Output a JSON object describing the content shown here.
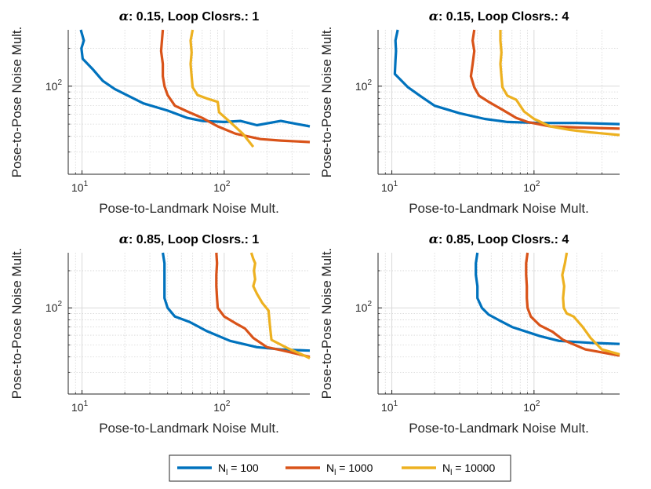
{
  "chart_data": {
    "type": "line",
    "layout": "2x2 grid of log-log line plots",
    "xscale": "log",
    "yscale": "log",
    "xlim": [
      8,
      400
    ],
    "ylim": [
      20,
      280
    ],
    "xticks": [
      10,
      100
    ],
    "xtick_labels": [
      {
        "base": "10",
        "exp": "1"
      },
      {
        "base": "10",
        "exp": "2"
      }
    ],
    "yticks": [
      100
    ],
    "ytick_labels": [
      {
        "base": "10",
        "exp": "2"
      }
    ],
    "grid": true,
    "minor_grid": true,
    "xlabel": "Pose-to-Landmark Noise Mult.",
    "ylabel": "Pose-to-Pose Noise Mult.",
    "title_symbol": "α",
    "series_colors": {
      "N100": "#0072BD",
      "N1000": "#D95319",
      "N10000": "#EDB120"
    },
    "legend": {
      "placement": "bottom-center",
      "entries": [
        {
          "key": "N100",
          "label_main": "N",
          "label_sub": "l",
          "label_value": " = 100",
          "color": "#0072BD"
        },
        {
          "key": "N1000",
          "label_main": "N",
          "label_sub": "l",
          "label_value": " = 1000",
          "color": "#D95319"
        },
        {
          "key": "N10000",
          "label_main": "N",
          "label_sub": "l",
          "label_value": " = 10000",
          "color": "#EDB120"
        }
      ]
    },
    "panels": [
      {
        "title_rest": ": 0.15, Loop Closrs.: 1",
        "series": [
          {
            "key": "N100",
            "x": [
              9.8,
              10.3,
              9.9,
              10.1,
              12,
              14,
              17,
              27,
              40,
              55,
              70,
              100,
              130,
              170,
              250,
              400
            ],
            "y": [
              280,
              230,
              200,
              165,
              135,
              110,
              95,
              73,
              64,
              56,
              53,
              52,
              53,
              49,
              53,
              48
            ]
          },
          {
            "key": "N1000",
            "x": [
              37,
              36,
              37,
              37,
              38,
              40,
              45,
              55,
              70,
              90,
              120,
              180,
              250,
              400
            ],
            "y": [
              280,
              190,
              150,
              120,
              100,
              85,
              70,
              63,
              56,
              48,
              42,
              38,
              37,
              36
            ]
          },
          {
            "key": "N10000",
            "x": [
              60,
              58,
              59,
              58,
              59,
              60,
              65,
              75,
              90,
              92,
              110,
              135,
              160
            ],
            "y": [
              280,
              230,
              185,
              150,
              120,
              98,
              85,
              80,
              75,
              62,
              52,
              42,
              33
            ]
          }
        ]
      },
      {
        "title_rest": ": 0.15, Loop Closrs.: 4",
        "series": [
          {
            "key": "N100",
            "x": [
              11,
              10.6,
              10.7,
              10.6,
              10.5,
              13,
              16,
              20,
              30,
              45,
              65,
              110,
              200,
              400
            ],
            "y": [
              280,
              230,
              190,
              160,
              125,
              98,
              83,
              70,
              61,
              55,
              52,
              51,
              51,
              50
            ]
          },
          {
            "key": "N1000",
            "x": [
              38,
              37,
              38,
              37,
              36,
              38,
              41,
              48,
              60,
              75,
              90,
              130,
              200,
              400
            ],
            "y": [
              280,
              230,
              190,
              150,
              120,
              98,
              84,
              75,
              65,
              56,
              52,
              48,
              47,
              46
            ]
          },
          {
            "key": "N10000",
            "x": [
              58,
              58,
              59,
              58,
              59,
              60,
              65,
              75,
              85,
              100,
              130,
              180,
              250,
              400
            ],
            "y": [
              280,
              230,
              185,
              150,
              120,
              98,
              84,
              78,
              63,
              55,
              48,
              45,
              43,
              41
            ]
          }
        ]
      },
      {
        "title_rest": ": 0.85, Loop Closrs.: 1",
        "series": [
          {
            "key": "N100",
            "x": [
              37,
              38,
              38,
              38,
              38,
              40,
              45,
              57,
              75,
              110,
              170,
              250,
              400
            ],
            "y": [
              280,
              230,
              185,
              150,
              120,
              100,
              85,
              77,
              65,
              54,
              48,
              46,
              45
            ]
          },
          {
            "key": "N1000",
            "x": [
              88,
              89,
              88,
              88,
              89,
              90,
              100,
              120,
              140,
              160,
              200,
              260,
              400
            ],
            "y": [
              280,
              230,
              185,
              150,
              120,
              100,
              85,
              75,
              68,
              57,
              48,
              45,
              40
            ]
          },
          {
            "key": "N10000",
            "x": [
              155,
              160,
              165,
              162,
              165,
              160,
              170,
              185,
              205,
              210,
              215,
              280,
              350,
              400
            ],
            "y": [
              280,
              250,
              230,
              200,
              170,
              150,
              130,
              110,
              95,
              70,
              55,
              47,
              42,
              39
            ]
          }
        ]
      },
      {
        "title_rest": ": 0.85, Loop Closrs.: 4",
        "series": [
          {
            "key": "N100",
            "x": [
              40,
              39,
              39,
              40,
              40,
              43,
              48,
              56,
              70,
              110,
              150,
              250,
              400
            ],
            "y": [
              280,
              230,
              185,
              150,
              120,
              100,
              88,
              80,
              70,
              59,
              54,
              52,
              51
            ]
          },
          {
            "key": "N1000",
            "x": [
              90,
              88,
              88,
              89,
              89,
              90,
              95,
              110,
              135,
              160,
              230,
              400
            ],
            "y": [
              280,
              230,
              185,
              150,
              120,
              100,
              85,
              72,
              64,
              55,
              46,
              41
            ]
          },
          {
            "key": "N10000",
            "x": [
              170,
              165,
              158,
              163,
              160,
              162,
              170,
              190,
              220,
              250,
              300,
              400
            ],
            "y": [
              280,
              230,
              185,
              150,
              120,
              100,
              90,
              85,
              70,
              57,
              46,
              42
            ]
          }
        ]
      }
    ]
  }
}
